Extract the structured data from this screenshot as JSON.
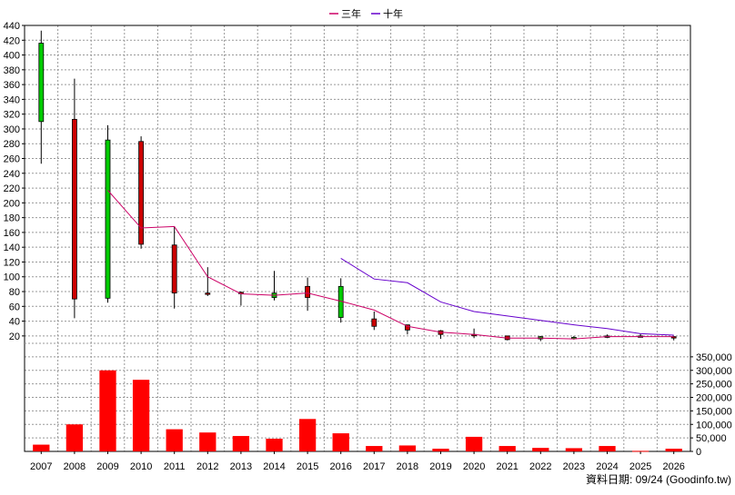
{
  "legend": {
    "series": [
      {
        "name": "三年",
        "color": "#cc0066"
      },
      {
        "name": "十年",
        "color": "#6600cc"
      }
    ]
  },
  "footer": "資料日期: 09/24  (Goodinfo.tw)",
  "chart_data": [
    {
      "type": "candlestick",
      "years": [
        "2007",
        "2008",
        "2009",
        "2010",
        "2011",
        "2012",
        "2013",
        "2014",
        "2015",
        "2016",
        "2017",
        "2018",
        "2019",
        "2020",
        "2021",
        "2022",
        "2023",
        "2024",
        "2025",
        "2026"
      ],
      "ylim": [
        10,
        440
      ],
      "yticks": [
        20,
        40,
        60,
        80,
        100,
        120,
        140,
        160,
        180,
        200,
        220,
        240,
        260,
        280,
        300,
        320,
        340,
        360,
        380,
        400,
        420,
        440
      ],
      "up_color": "#00cc00",
      "down_color": "#cc0000",
      "candles": [
        {
          "year": "2007",
          "open": 310,
          "close": 416,
          "high": 433,
          "low": 253
        },
        {
          "year": "2008",
          "open": 313,
          "close": 70,
          "high": 368,
          "low": 44
        },
        {
          "year": "2009",
          "open": 71,
          "close": 285,
          "high": 305,
          "low": 65
        },
        {
          "year": "2010",
          "open": 283,
          "close": 144,
          "high": 290,
          "low": 138
        },
        {
          "year": "2011",
          "open": 143,
          "close": 78,
          "high": 168,
          "low": 57
        },
        {
          "year": "2012",
          "open": 78,
          "close": 77,
          "high": 113,
          "low": 74
        },
        {
          "year": "2013",
          "open": 79,
          "close": 78,
          "high": 80,
          "low": 61
        },
        {
          "year": "2014",
          "open": 72,
          "close": 78,
          "high": 108,
          "low": 68
        },
        {
          "year": "2015",
          "open": 87,
          "close": 72,
          "high": 99,
          "low": 54
        },
        {
          "year": "2016",
          "open": 45,
          "close": 87,
          "high": 98,
          "low": 38
        },
        {
          "year": "2017",
          "open": 43,
          "close": 33,
          "high": 53,
          "low": 28
        },
        {
          "year": "2018",
          "open": 35,
          "close": 28,
          "high": 35,
          "low": 22
        },
        {
          "year": "2019",
          "open": 27,
          "close": 22,
          "high": 28,
          "low": 16
        },
        {
          "year": "2020",
          "open": 22,
          "close": 21,
          "high": 30,
          "low": 17
        },
        {
          "year": "2021",
          "open": 20,
          "close": 15,
          "high": 20,
          "low": 14
        },
        {
          "year": "2022",
          "open": 16,
          "close": 19,
          "high": 20,
          "low": 13
        },
        {
          "year": "2023",
          "open": 18,
          "close": 18,
          "high": 20,
          "low": 15
        },
        {
          "year": "2024",
          "open": 18,
          "close": 20,
          "high": 22,
          "low": 17
        },
        {
          "year": "2025",
          "open": 20,
          "close": 20,
          "high": 23,
          "low": 18
        },
        {
          "year": "2026",
          "open": 19,
          "close": 18,
          "high": 20,
          "low": 14
        }
      ],
      "lines": [
        {
          "name": "三年",
          "color": "#cc0066",
          "x": [
            "2009",
            "2010",
            "2011",
            "2012",
            "2013",
            "2014",
            "2015",
            "2016",
            "2017",
            "2018",
            "2019",
            "2020",
            "2021",
            "2022",
            "2023",
            "2024",
            "2025",
            "2026"
          ],
          "values": [
            217,
            166,
            168,
            100,
            77,
            75,
            78,
            67,
            55,
            33,
            25,
            22,
            17,
            17,
            16,
            19,
            19,
            19
          ]
        },
        {
          "name": "十年",
          "color": "#6600cc",
          "x": [
            "2016",
            "2017",
            "2018",
            "2019",
            "2020",
            "2021",
            "2022",
            "2023",
            "2024",
            "2025",
            "2026"
          ],
          "values": [
            125,
            97,
            92,
            66,
            53,
            47,
            41,
            35,
            30,
            23,
            21
          ]
        }
      ]
    },
    {
      "type": "bar",
      "categories": [
        "2007",
        "2008",
        "2009",
        "2010",
        "2011",
        "2012",
        "2013",
        "2014",
        "2015",
        "2016",
        "2017",
        "2018",
        "2019",
        "2020",
        "2021",
        "2022",
        "2023",
        "2024",
        "2025",
        "2026"
      ],
      "values": [
        25000,
        100000,
        300000,
        265000,
        82000,
        70000,
        57000,
        47000,
        120000,
        67000,
        20000,
        22000,
        10000,
        54000,
        20000,
        13000,
        12000,
        20000,
        2000,
        10000
      ],
      "color": "#ff0000",
      "ylim": [
        0,
        400000
      ],
      "yticks": [
        "0",
        "50,000",
        "100,000",
        "150,000",
        "200,000",
        "250,000",
        "300,000",
        "350,000"
      ]
    }
  ]
}
